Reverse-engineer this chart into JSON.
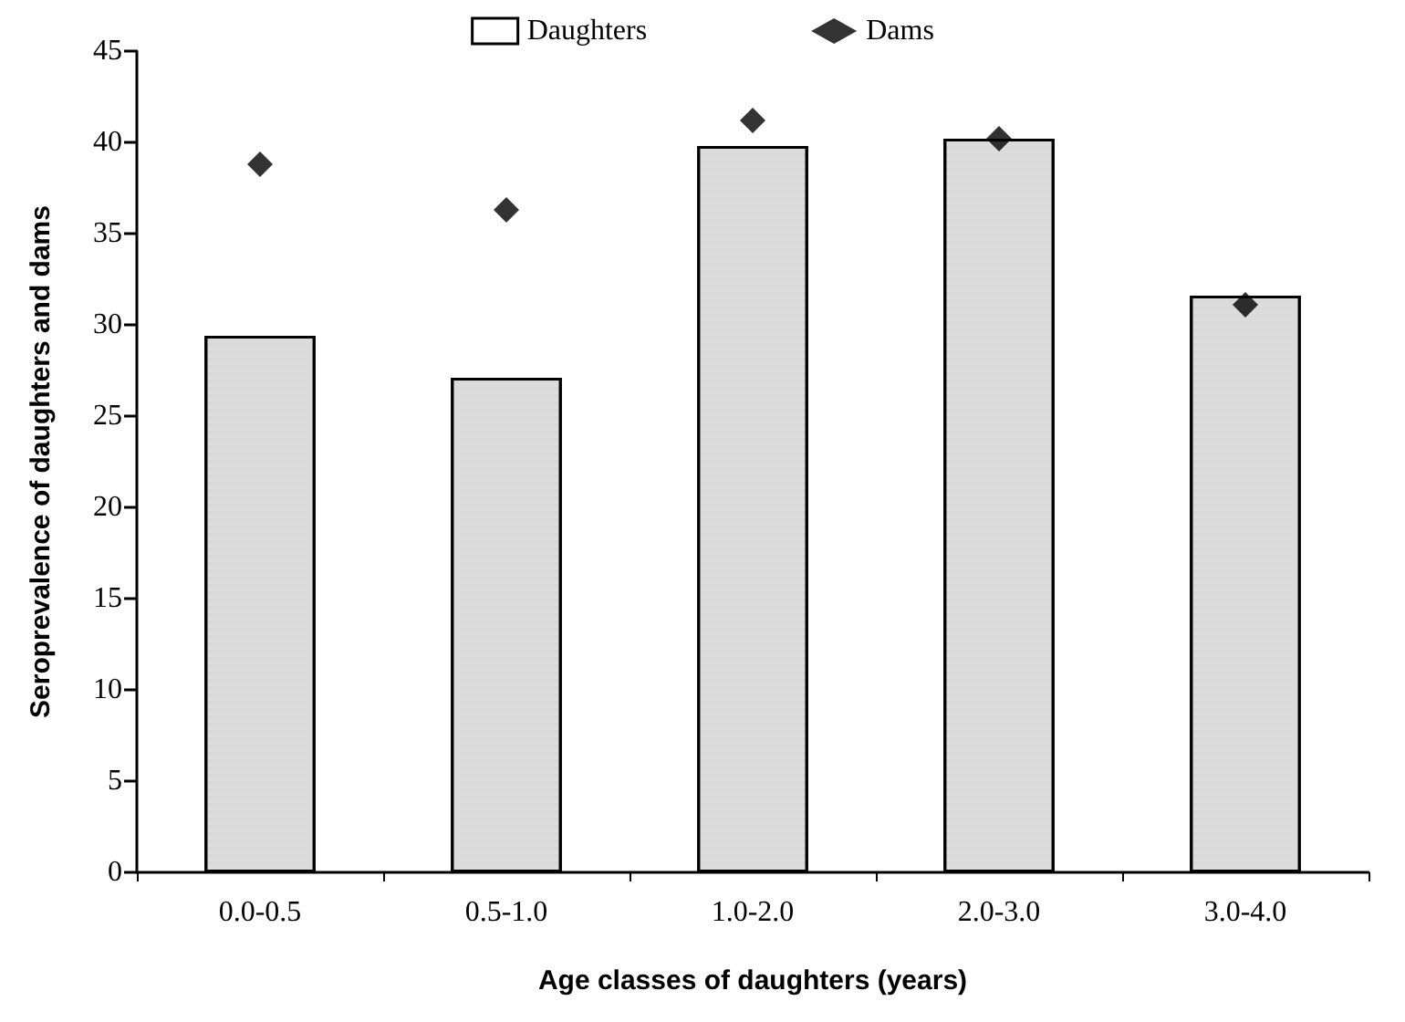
{
  "chart_data": {
    "type": "bar",
    "xlabel": "Age classes of daughters (years)",
    "ylabel": "Seroprevalence of daughters and dams",
    "categories": [
      "0.0-0.5",
      "0.5-1.0",
      "1.0-2.0",
      "2.0-3.0",
      "3.0-4.0"
    ],
    "series": [
      {
        "name": "Daughters",
        "color": "#dcdcdc",
        "values": [
          29.4,
          27.1,
          39.8,
          40.2,
          31.6
        ]
      },
      {
        "name": "Dams",
        "type": "scatter",
        "color": "#000000",
        "marker": "diamond",
        "values": [
          38.8,
          36.3,
          41.2,
          40.2,
          31.1
        ]
      }
    ],
    "ylim": [
      0,
      45
    ],
    "yticks": [
      0,
      5,
      10,
      15,
      20,
      25,
      30,
      35,
      40,
      45
    ],
    "grid": false,
    "legend": "top"
  }
}
